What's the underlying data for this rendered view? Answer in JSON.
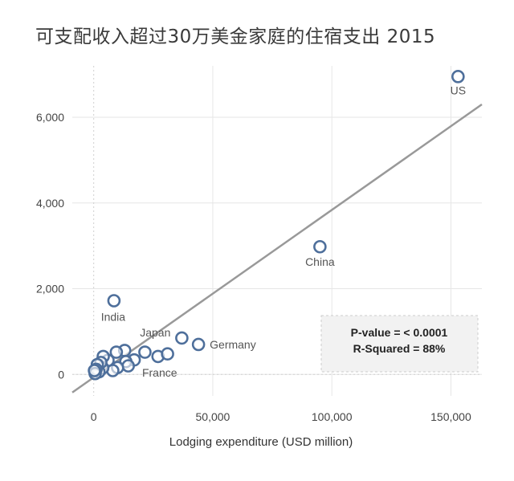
{
  "chart_data": {
    "type": "scatter",
    "title": "可支配收入超过30万美金家庭的住宿支出 2015",
    "xlabel": "Lodging expenditure (USD million)",
    "ylabel": "",
    "xlim": [
      -9000,
      163000
    ],
    "ylim": [
      -500,
      7200
    ],
    "x_ticks": [
      0,
      50000,
      100000,
      150000
    ],
    "x_tick_labels": [
      "0",
      "50,000",
      "100,000",
      "150,000"
    ],
    "y_ticks": [
      0,
      2000,
      4000,
      6000
    ],
    "y_tick_labels": [
      "0",
      "2,000",
      "4,000",
      "6,000"
    ],
    "grid": true,
    "points": [
      {
        "x": 153000,
        "y": 6950,
        "label": "US"
      },
      {
        "x": 95000,
        "y": 2980,
        "label": "China"
      },
      {
        "x": 8500,
        "y": 1720,
        "label": "India"
      },
      {
        "x": 37000,
        "y": 850,
        "label": "Japan"
      },
      {
        "x": 44000,
        "y": 700,
        "label": "Germany"
      },
      {
        "x": 27000,
        "y": 420,
        "label": "France"
      },
      {
        "x": 31000,
        "y": 480,
        "label": ""
      },
      {
        "x": 21500,
        "y": 520,
        "label": ""
      },
      {
        "x": 17000,
        "y": 340,
        "label": ""
      },
      {
        "x": 13000,
        "y": 560,
        "label": ""
      },
      {
        "x": 13500,
        "y": 300,
        "label": ""
      },
      {
        "x": 14500,
        "y": 200,
        "label": ""
      },
      {
        "x": 9500,
        "y": 520,
        "label": ""
      },
      {
        "x": 10000,
        "y": 160,
        "label": ""
      },
      {
        "x": 8000,
        "y": 90,
        "label": ""
      },
      {
        "x": 6000,
        "y": 330,
        "label": ""
      },
      {
        "x": 4000,
        "y": 420,
        "label": ""
      },
      {
        "x": 3800,
        "y": 150,
        "label": ""
      },
      {
        "x": 3000,
        "y": 280,
        "label": ""
      },
      {
        "x": 2200,
        "y": 60,
        "label": ""
      },
      {
        "x": 1500,
        "y": 230,
        "label": ""
      },
      {
        "x": 1000,
        "y": 120,
        "label": ""
      },
      {
        "x": 600,
        "y": 20,
        "label": ""
      },
      {
        "x": 300,
        "y": 90,
        "label": ""
      }
    ],
    "trendline": {
      "x": [
        -9000,
        163000
      ],
      "y": [
        -420,
        6300
      ]
    },
    "annotation": {
      "lines": [
        "P-value = < 0.0001",
        "R-Squared = 88%"
      ]
    },
    "colors": {
      "marker": "#4e6f9b",
      "trend": "#999999",
      "grid": "#e6e6e6"
    }
  }
}
